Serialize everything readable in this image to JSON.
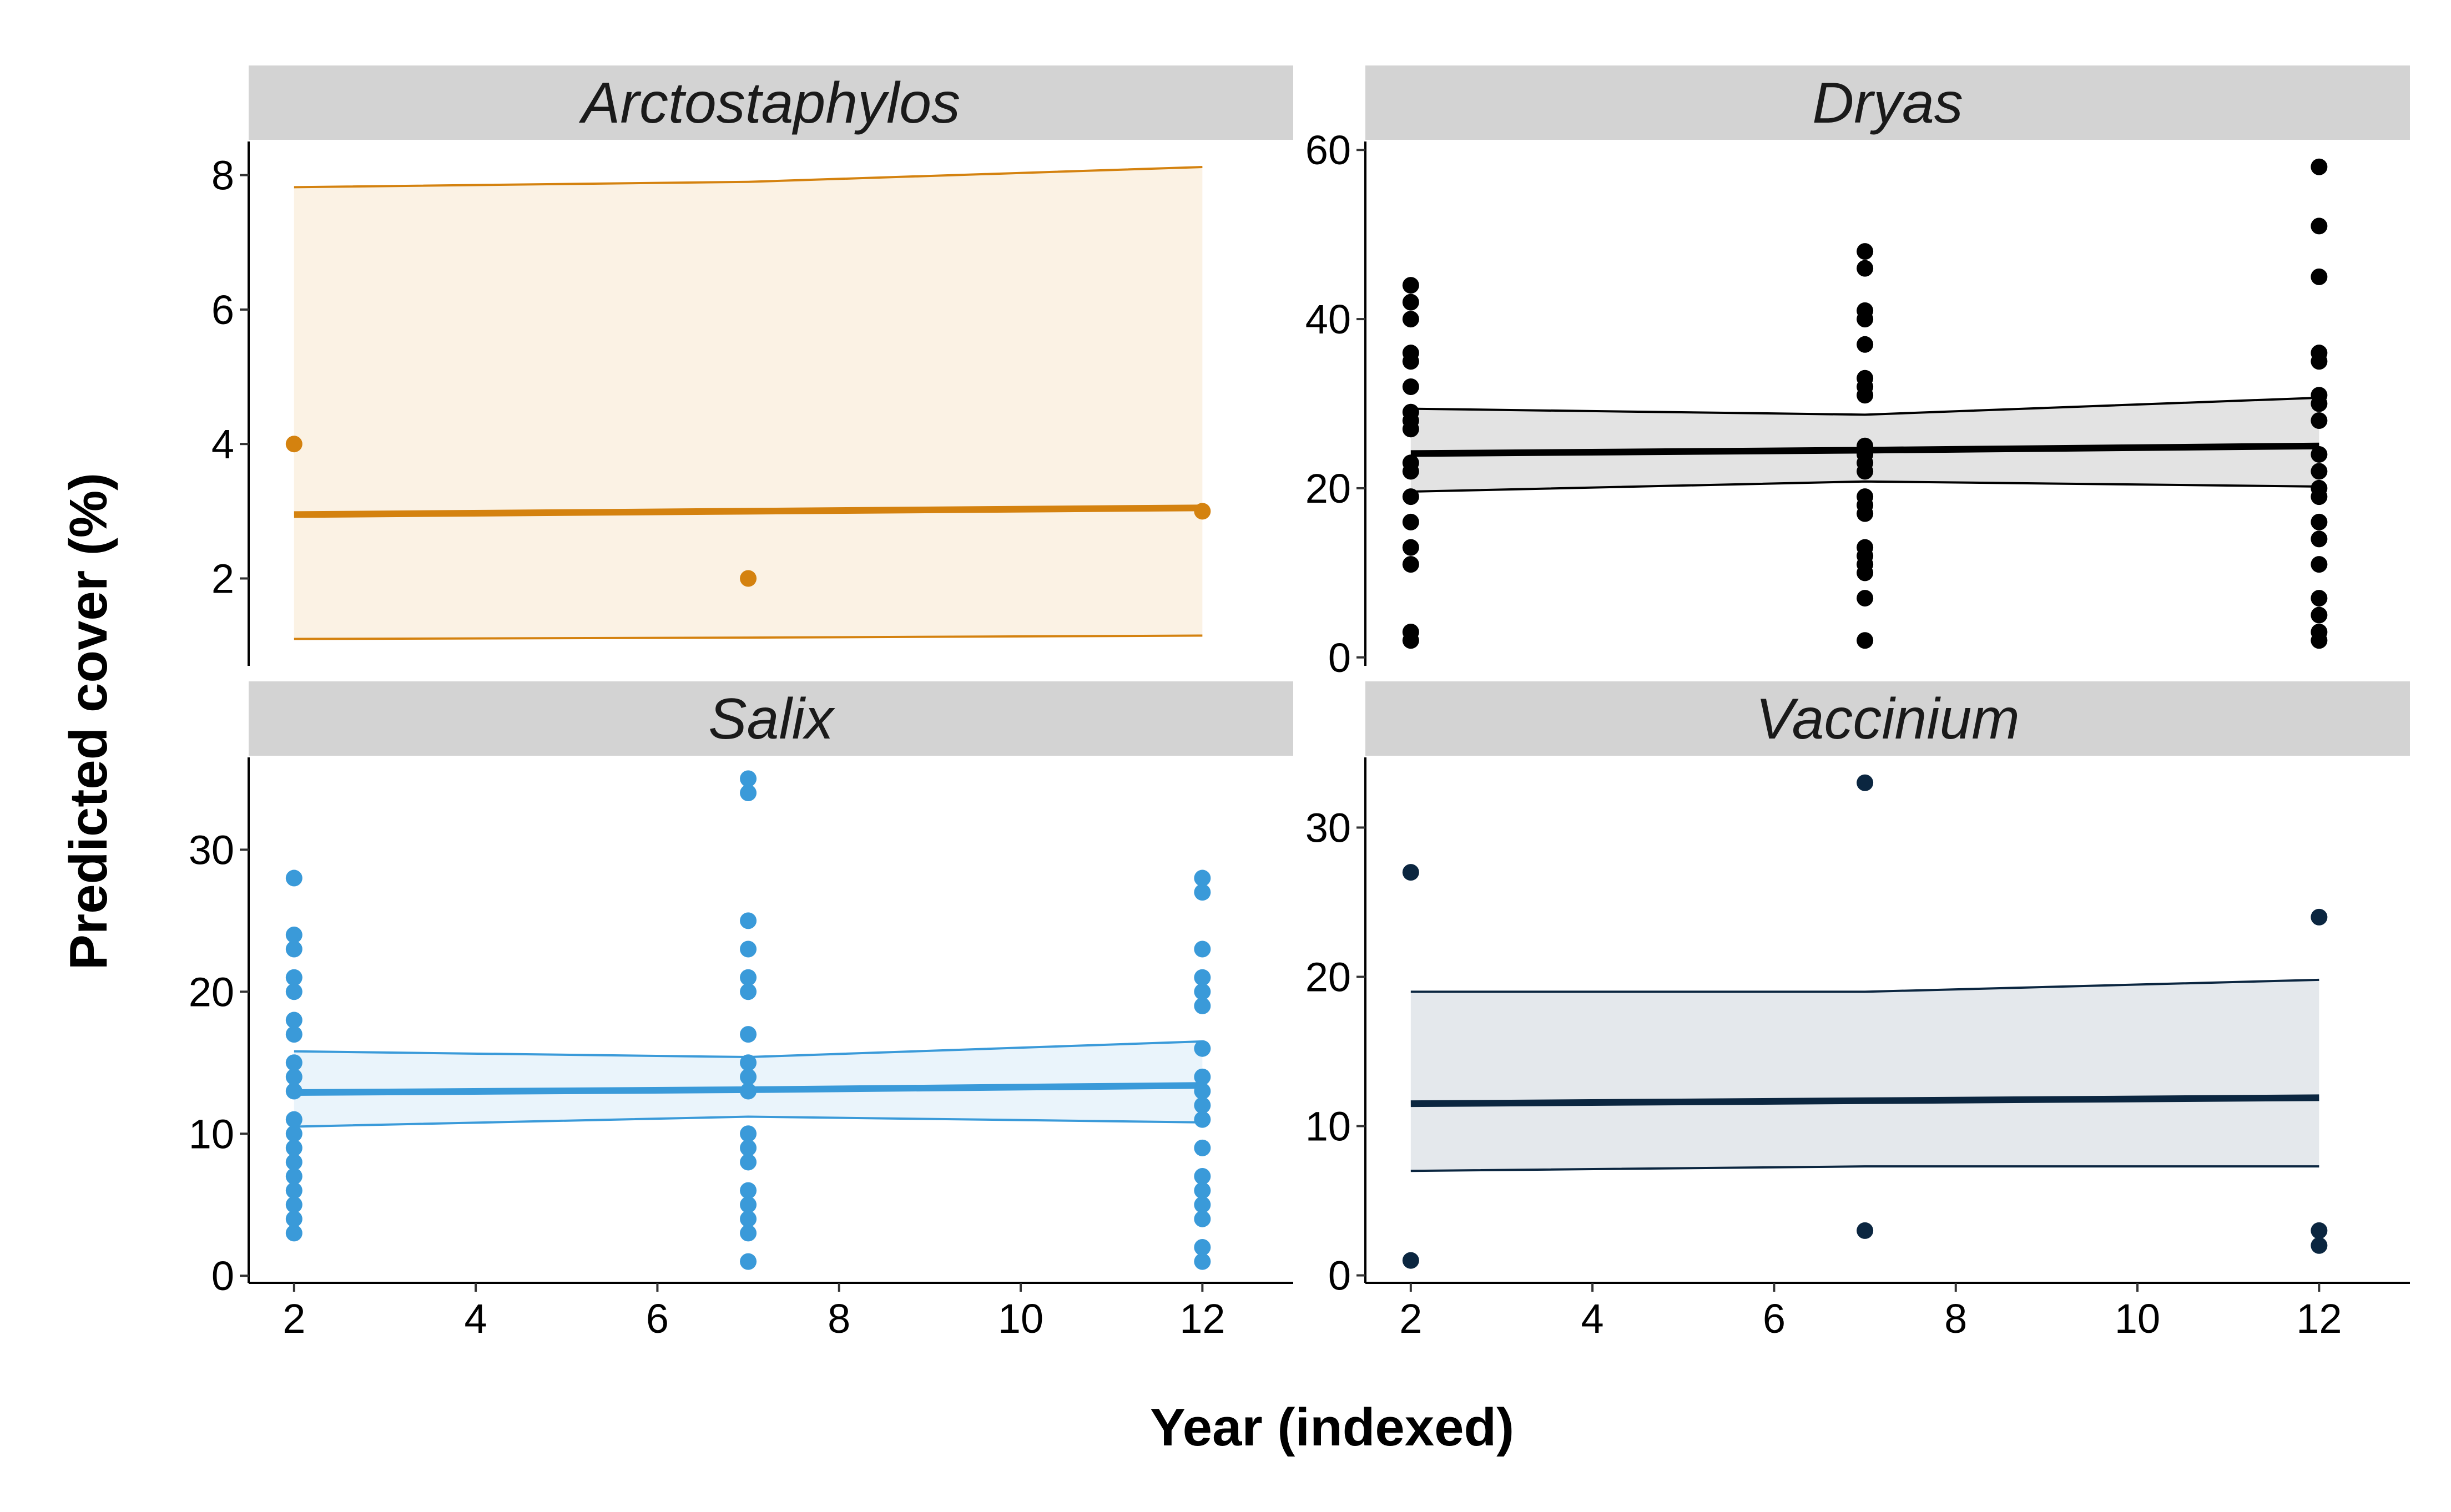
{
  "chart_data": {
    "type": "scatter",
    "xlabel": "Year (indexed)",
    "ylabel": "Predicted cover (%)",
    "xlim": [
      1.5,
      13
    ],
    "x_ticks": [
      2,
      4,
      6,
      8,
      10,
      12
    ],
    "grid": false,
    "panels": [
      {
        "title": "Arctostaphylos",
        "color": "#D4820F",
        "ribbon_color": "#FBF2E4",
        "ylim": [
          0.7,
          8.5
        ],
        "y_ticks": [
          2,
          4,
          6,
          8
        ],
        "fit": {
          "x": [
            2,
            7,
            12
          ],
          "y": [
            2.95,
            3.0,
            3.05
          ],
          "lower": [
            1.1,
            1.12,
            1.15
          ],
          "upper": [
            7.82,
            7.9,
            8.12
          ]
        },
        "points": [
          {
            "x": 2,
            "y": [
              4
            ]
          },
          {
            "x": 7,
            "y": [
              2
            ]
          },
          {
            "x": 12,
            "y": [
              3
            ]
          }
        ]
      },
      {
        "title": "Dryas",
        "color": "#000000",
        "ribbon_color": "#E3E3E3",
        "ylim": [
          -1,
          61
        ],
        "y_ticks": [
          0,
          20,
          40,
          60
        ],
        "fit": {
          "x": [
            2,
            7,
            12
          ],
          "y": [
            24.1,
            24.5,
            25.0
          ],
          "lower": [
            19.6,
            20.8,
            20.2
          ],
          "upper": [
            29.4,
            28.7,
            30.7
          ]
        },
        "points": [
          {
            "x": 2,
            "y": [
              2,
              3,
              11,
              13,
              16,
              19,
              22,
              23,
              27,
              28,
              29,
              32,
              35,
              36,
              40,
              42,
              44
            ]
          },
          {
            "x": 7,
            "y": [
              2,
              7,
              10,
              11,
              12,
              13,
              17,
              18,
              19,
              22,
              23,
              24,
              25,
              31,
              32,
              33,
              37,
              40,
              41,
              46,
              48
            ]
          },
          {
            "x": 12,
            "y": [
              2,
              3,
              5,
              7,
              11,
              14,
              16,
              19,
              20,
              22,
              24,
              28,
              30,
              31,
              35,
              36,
              45,
              51,
              58
            ]
          }
        ]
      },
      {
        "title": "Salix",
        "color": "#3A9AD9",
        "ribbon_color": "#EAF4FB",
        "ylim": [
          -0.5,
          36.5
        ],
        "y_ticks": [
          0,
          10,
          20,
          30
        ],
        "fit": {
          "x": [
            2,
            7,
            12
          ],
          "y": [
            12.9,
            13.1,
            13.4
          ],
          "lower": [
            10.5,
            11.2,
            10.8
          ],
          "upper": [
            15.8,
            15.4,
            16.5
          ]
        },
        "points": [
          {
            "x": 2,
            "y": [
              3,
              4,
              5,
              6,
              7,
              8,
              9,
              10,
              11,
              13,
              14,
              15,
              17,
              18,
              20,
              21,
              23,
              24,
              28
            ]
          },
          {
            "x": 7,
            "y": [
              1,
              3,
              4,
              5,
              6,
              8,
              9,
              10,
              13,
              14,
              15,
              17,
              20,
              21,
              23,
              25,
              34,
              35
            ]
          },
          {
            "x": 12,
            "y": [
              1,
              2,
              4,
              5,
              6,
              7,
              9,
              11,
              12,
              13,
              14,
              16,
              19,
              20,
              21,
              23,
              27,
              28
            ]
          }
        ]
      },
      {
        "title": "Vaccinium",
        "color": "#0B2640",
        "ribbon_color": "#E4E8EC",
        "ylim": [
          -0.5,
          34.7
        ],
        "y_ticks": [
          0,
          10,
          20,
          30
        ],
        "fit": {
          "x": [
            2,
            7,
            12
          ],
          "y": [
            11.5,
            11.7,
            11.9
          ],
          "lower": [
            7.0,
            7.3,
            7.3
          ],
          "upper": [
            19.0,
            19.0,
            19.8
          ]
        },
        "points": [
          {
            "x": 2,
            "y": [
              1,
              27
            ]
          },
          {
            "x": 7,
            "y": [
              3,
              33
            ]
          },
          {
            "x": 12,
            "y": [
              2,
              3,
              24
            ]
          }
        ]
      }
    ]
  }
}
